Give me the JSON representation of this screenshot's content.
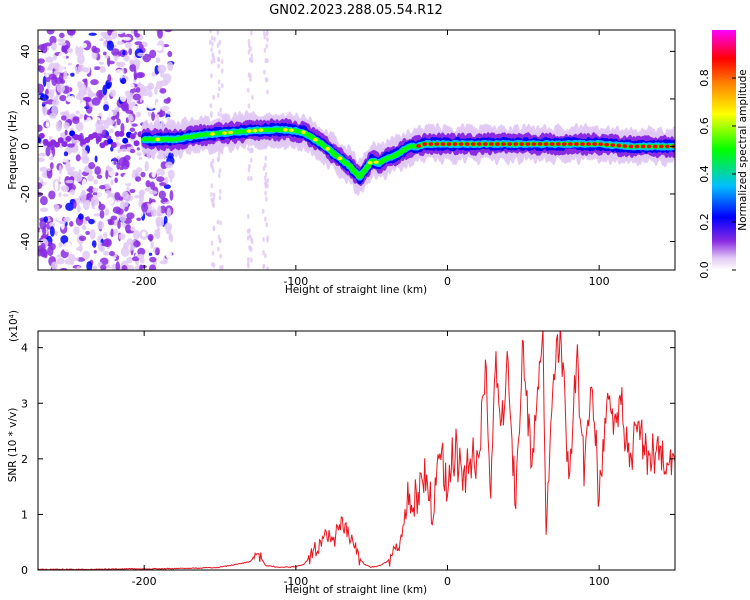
{
  "figure": {
    "title": "GN02.2023.288.05.54.R12"
  },
  "chart_data": [
    {
      "type": "heatmap",
      "title": "GN02.2023.288.05.54.R12",
      "xlabel": "Height of straight line (km)",
      "ylabel": "Frequency (Hz)",
      "xlim": [
        -270,
        150
      ],
      "ylim": [
        -52,
        49
      ],
      "xticks": [
        -200,
        -100,
        0,
        100
      ],
      "xtick_labels": [
        "-200",
        "-100",
        "0",
        "100"
      ],
      "yticks": [
        -40,
        -20,
        0,
        20,
        40
      ],
      "ytick_labels": [
        "-40",
        "-20",
        "0",
        "20",
        "40"
      ],
      "colorbar": {
        "label": "Normalized spectral amplitude",
        "range": [
          0,
          1
        ],
        "ticks": [
          0.0,
          0.2,
          0.4,
          0.6,
          0.8
        ],
        "tick_labels": [
          "0.0",
          "0.2",
          "0.4",
          "0.6",
          "0.8"
        ],
        "colormap": [
          "#ffffff",
          "#e0c8f4",
          "#8a2be2",
          "#0000ff",
          "#00bfff",
          "#00ff00",
          "#ffff00",
          "#ff7f00",
          "#ff0000",
          "#ff00ff"
        ]
      },
      "ridge": {
        "x": [
          -200,
          -180,
          -160,
          -140,
          -120,
          -105,
          -95,
          -85,
          -75,
          -65,
          -58,
          -50,
          -45,
          -40,
          -35,
          -30,
          -25,
          -20,
          -15,
          0,
          20,
          40,
          60,
          80,
          100,
          120,
          150
        ],
        "freq": [
          3,
          3,
          5,
          6,
          7,
          7,
          6,
          2,
          -3,
          -8,
          -13,
          -6,
          -7,
          -5,
          -4,
          -2,
          0,
          0,
          1,
          1,
          1,
          1,
          1,
          1,
          1,
          0,
          0
        ]
      },
      "grid": false
    },
    {
      "type": "line",
      "xlabel": "Height of straight line (km)",
      "ylabel": "SNR (10 * v/v)",
      "y_multiplier": "(x10⁴)",
      "xlim": [
        -270,
        150
      ],
      "ylim": [
        0,
        4.3
      ],
      "xticks": [
        -200,
        -100,
        0,
        100
      ],
      "xtick_labels": [
        "-200",
        "-100",
        "0",
        "100"
      ],
      "yticks": [
        0,
        1,
        2,
        3,
        4
      ],
      "ytick_labels": [
        "0",
        "1",
        "2",
        "3",
        "4"
      ],
      "series": [
        {
          "color": "#e8161f",
          "x": [
            -270,
            -250,
            -230,
            -210,
            -190,
            -170,
            -150,
            -140,
            -130,
            -125,
            -120,
            -110,
            -100,
            -95,
            -85,
            -80,
            -75,
            -70,
            -65,
            -60,
            -55,
            -50,
            -45,
            -40,
            -35,
            -30,
            -28,
            -25,
            -20,
            -15,
            -10,
            -5,
            0,
            5,
            10,
            15,
            20,
            25,
            28,
            32,
            35,
            40,
            45,
            50,
            55,
            60,
            63,
            65,
            70,
            75,
            80,
            85,
            90,
            95,
            100,
            105,
            110,
            115,
            120,
            125,
            130,
            140,
            150
          ],
          "y": [
            0.01,
            0.01,
            0.01,
            0.02,
            0.02,
            0.03,
            0.05,
            0.1,
            0.15,
            0.3,
            0.08,
            0.05,
            0.06,
            0.1,
            0.4,
            0.6,
            0.5,
            0.9,
            0.6,
            0.3,
            0.1,
            0.05,
            0.08,
            0.15,
            0.3,
            0.6,
            1.0,
            1.5,
            1.3,
            1.9,
            1.1,
            2.1,
            1.5,
            2.2,
            1.6,
            2.0,
            1.9,
            3.9,
            1.2,
            3.8,
            2.6,
            3.6,
            1.3,
            4.0,
            2.1,
            3.0,
            4.3,
            0.6,
            3.8,
            4.3,
            1.5,
            3.9,
            1.8,
            3.5,
            1.3,
            3.2,
            2.5,
            3.0,
            1.9,
            2.7,
            2.0,
            2.1,
            1.95
          ]
        }
      ],
      "grid": false
    }
  ]
}
